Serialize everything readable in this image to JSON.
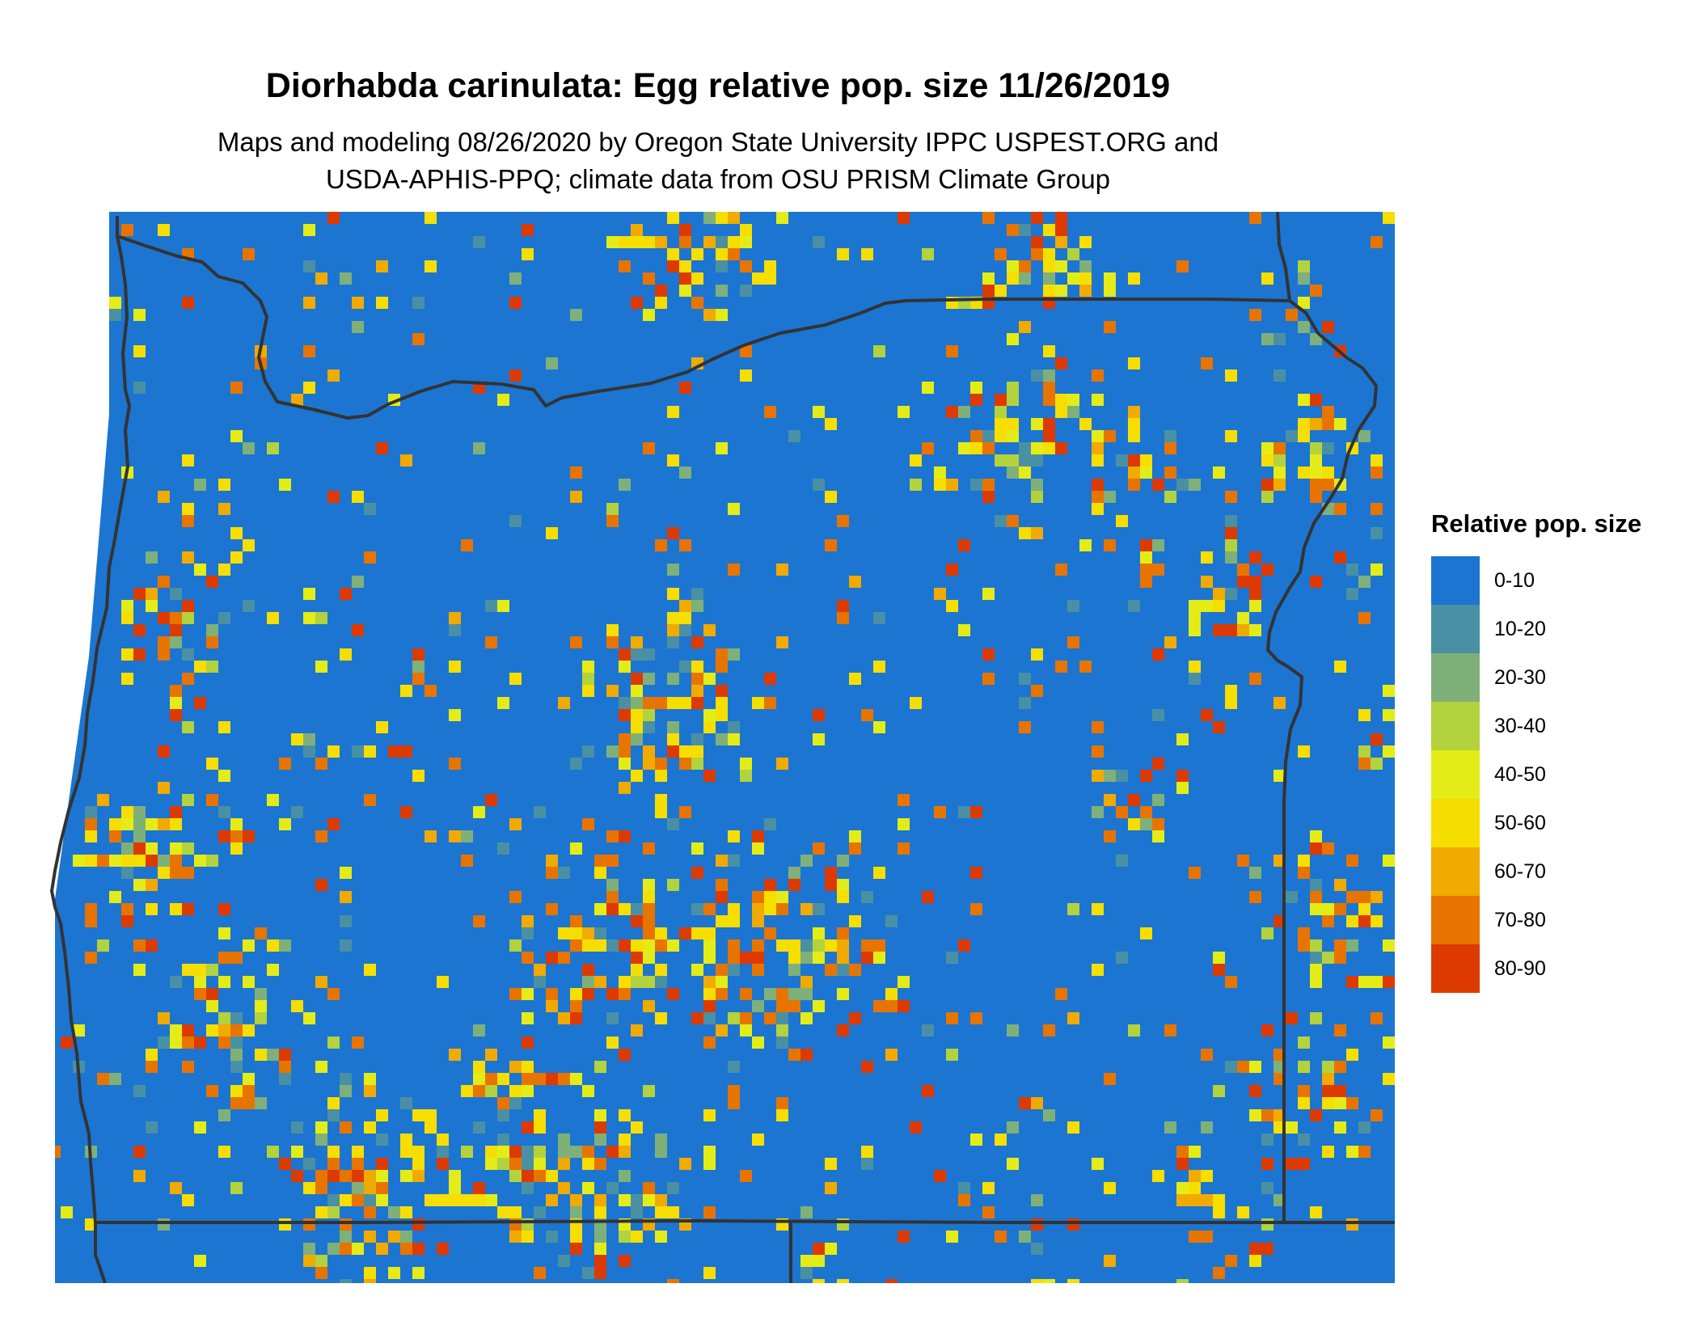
{
  "title": "Diorhabda carinulata: Egg relative pop. size 11/26/2019",
  "subtitle": [
    "Maps and modeling 08/26/2020 by Oregon State University IPPC USPEST.ORG and",
    "USDA-APHIS-PPQ; climate data from OSU PRISM Climate Group"
  ],
  "legend": {
    "title": "Relative pop. size",
    "items": [
      {
        "label": "0-10",
        "color": "#1c75d1"
      },
      {
        "label": "10-20",
        "color": "#4a90a4"
      },
      {
        "label": "20-30",
        "color": "#7fb07a"
      },
      {
        "label": "30-40",
        "color": "#b2d23e"
      },
      {
        "label": "40-50",
        "color": "#e4ec18"
      },
      {
        "label": "50-60",
        "color": "#f6de00"
      },
      {
        "label": "60-70",
        "color": "#f0aa00"
      },
      {
        "label": "70-80",
        "color": "#e87400"
      },
      {
        "label": "80-90",
        "color": "#dc3a00"
      }
    ]
  },
  "map": {
    "region": "Oregon",
    "background_class": "0-10",
    "boundary_color": "#333333"
  }
}
